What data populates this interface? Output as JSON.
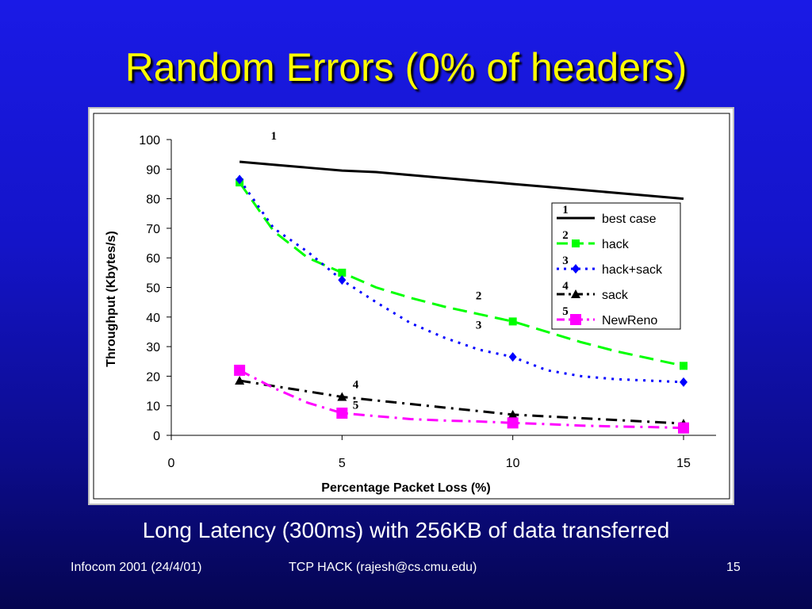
{
  "slide": {
    "title": "Random Errors (0% of headers)",
    "subtitle": "Long Latency (300ms) with 256KB of data transferred",
    "footer_left": "Infocom 2001 (24/4/01)",
    "footer_center": "TCP HACK (rajesh@cs.cmu.edu)",
    "footer_right": "15"
  },
  "chart_data": {
    "type": "line",
    "title": "",
    "xlabel": "Percentage Packet Loss (%)",
    "ylabel": "Throughput (Kbytes/s)",
    "xlim": [
      0,
      15
    ],
    "ylim": [
      0,
      100
    ],
    "xticks": [
      0,
      5,
      10,
      15
    ],
    "yticks": [
      0,
      10,
      20,
      30,
      40,
      50,
      60,
      70,
      80,
      90,
      100
    ],
    "grid": false,
    "legend_position": "right",
    "series": [
      {
        "name": "best case",
        "label": "1",
        "color": "#000000",
        "dash": "solid",
        "marker": "none",
        "width": 3,
        "x": [
          2,
          3,
          4,
          5,
          6,
          7,
          8,
          9,
          10,
          11,
          12,
          13,
          14,
          15
        ],
        "y": [
          92.5,
          91.5,
          90.5,
          89.5,
          89,
          88,
          87,
          86,
          85,
          84,
          83,
          82,
          81,
          80
        ],
        "markers_at": [],
        "label_at": [
          3,
          100
        ]
      },
      {
        "name": "hack",
        "label": "2",
        "color": "#00ff00",
        "dash": "long",
        "marker": "square",
        "width": 3,
        "x": [
          2,
          3,
          4,
          5,
          6,
          7,
          8,
          9,
          10,
          11,
          12,
          13,
          14,
          15
        ],
        "y": [
          85.5,
          69,
          60,
          55,
          50,
          46.5,
          43.5,
          41,
          38.5,
          35,
          31.5,
          28.5,
          26,
          23.5
        ],
        "markers_at": [
          2,
          5,
          10,
          15
        ],
        "label_at": [
          9,
          46
        ]
      },
      {
        "name": "hack+sack",
        "label": "3",
        "color": "#0000ff",
        "dash": "dotted",
        "marker": "diamond",
        "width": 3,
        "x": [
          2,
          3,
          4,
          5,
          6,
          7,
          8,
          9,
          10,
          11,
          12,
          13,
          14,
          15
        ],
        "y": [
          86.5,
          70,
          62,
          52.5,
          45,
          38,
          33,
          29,
          26.5,
          22,
          20,
          19,
          18.5,
          18
        ],
        "markers_at": [
          2,
          5,
          10,
          15
        ],
        "label_at": [
          9,
          36
        ]
      },
      {
        "name": "sack",
        "label": "4",
        "color": "#000000",
        "dash": "dashdot",
        "marker": "triangle",
        "width": 3,
        "x": [
          2,
          5,
          10,
          15
        ],
        "y": [
          18.5,
          13,
          7,
          4
        ],
        "markers_at": [
          2,
          5,
          10,
          15
        ],
        "label_at": [
          5.4,
          16
        ]
      },
      {
        "name": "NewReno",
        "label": "5",
        "color": "#ff00ff",
        "dash": "dashdot",
        "marker": "square-large",
        "width": 3,
        "x": [
          2,
          3,
          4,
          5,
          6,
          7,
          8,
          9,
          10,
          11,
          12,
          13,
          14,
          15
        ],
        "y": [
          22,
          16,
          11,
          7.5,
          6.5,
          5.5,
          5,
          4.7,
          4.2,
          3.8,
          3.3,
          3,
          2.8,
          2.5
        ],
        "markers_at": [
          2,
          5,
          10,
          15
        ],
        "label_at": [
          5.4,
          9
        ]
      }
    ]
  }
}
